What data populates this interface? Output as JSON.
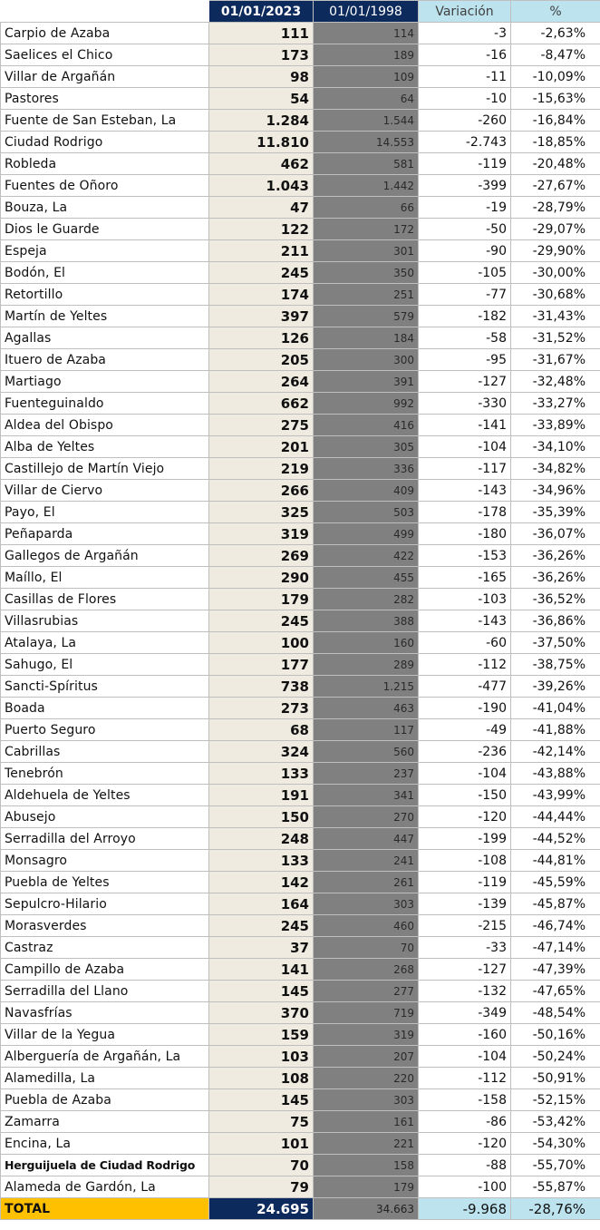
{
  "headers": {
    "name": "",
    "pop_2023": "01/01/2023",
    "pop_1998": "01/01/1998",
    "variation": "Variación",
    "percent": "%"
  },
  "rows": [
    {
      "name": "Carpio de Azaba",
      "pop_2023": "111",
      "pop_1998": "114",
      "variation": "-3",
      "percent": "-2,63%"
    },
    {
      "name": "Saelices el Chico",
      "pop_2023": "173",
      "pop_1998": "189",
      "variation": "-16",
      "percent": "-8,47%"
    },
    {
      "name": "Villar de Argañán",
      "pop_2023": "98",
      "pop_1998": "109",
      "variation": "-11",
      "percent": "-10,09%"
    },
    {
      "name": "Pastores",
      "pop_2023": "54",
      "pop_1998": "64",
      "variation": "-10",
      "percent": "-15,63%"
    },
    {
      "name": "Fuente de San Esteban, La",
      "pop_2023": "1.284",
      "pop_1998": "1.544",
      "variation": "-260",
      "percent": "-16,84%"
    },
    {
      "name": "Ciudad Rodrigo",
      "pop_2023": "11.810",
      "pop_1998": "14.553",
      "variation": "-2.743",
      "percent": "-18,85%"
    },
    {
      "name": "Robleda",
      "pop_2023": "462",
      "pop_1998": "581",
      "variation": "-119",
      "percent": "-20,48%"
    },
    {
      "name": "Fuentes de Oñoro",
      "pop_2023": "1.043",
      "pop_1998": "1.442",
      "variation": "-399",
      "percent": "-27,67%"
    },
    {
      "name": "Bouza, La",
      "pop_2023": "47",
      "pop_1998": "66",
      "variation": "-19",
      "percent": "-28,79%"
    },
    {
      "name": "Dios le Guarde",
      "pop_2023": "122",
      "pop_1998": "172",
      "variation": "-50",
      "percent": "-29,07%"
    },
    {
      "name": "Espeja",
      "pop_2023": "211",
      "pop_1998": "301",
      "variation": "-90",
      "percent": "-29,90%"
    },
    {
      "name": "Bodón, El",
      "pop_2023": "245",
      "pop_1998": "350",
      "variation": "-105",
      "percent": "-30,00%"
    },
    {
      "name": "Retortillo",
      "pop_2023": "174",
      "pop_1998": "251",
      "variation": "-77",
      "percent": "-30,68%"
    },
    {
      "name": "Martín de Yeltes",
      "pop_2023": "397",
      "pop_1998": "579",
      "variation": "-182",
      "percent": "-31,43%"
    },
    {
      "name": "Agallas",
      "pop_2023": "126",
      "pop_1998": "184",
      "variation": "-58",
      "percent": "-31,52%"
    },
    {
      "name": "Ituero de Azaba",
      "pop_2023": "205",
      "pop_1998": "300",
      "variation": "-95",
      "percent": "-31,67%"
    },
    {
      "name": "Martiago",
      "pop_2023": "264",
      "pop_1998": "391",
      "variation": "-127",
      "percent": "-32,48%"
    },
    {
      "name": "Fuenteguinaldo",
      "pop_2023": "662",
      "pop_1998": "992",
      "variation": "-330",
      "percent": "-33,27%"
    },
    {
      "name": "Aldea del Obispo",
      "pop_2023": "275",
      "pop_1998": "416",
      "variation": "-141",
      "percent": "-33,89%"
    },
    {
      "name": "Alba de Yeltes",
      "pop_2023": "201",
      "pop_1998": "305",
      "variation": "-104",
      "percent": "-34,10%"
    },
    {
      "name": "Castillejo de Martín Viejo",
      "pop_2023": "219",
      "pop_1998": "336",
      "variation": "-117",
      "percent": "-34,82%"
    },
    {
      "name": "Villar de Ciervo",
      "pop_2023": "266",
      "pop_1998": "409",
      "variation": "-143",
      "percent": "-34,96%"
    },
    {
      "name": "Payo, El",
      "pop_2023": "325",
      "pop_1998": "503",
      "variation": "-178",
      "percent": "-35,39%"
    },
    {
      "name": "Peñaparda",
      "pop_2023": "319",
      "pop_1998": "499",
      "variation": "-180",
      "percent": "-36,07%"
    },
    {
      "name": "Gallegos de Argañán",
      "pop_2023": "269",
      "pop_1998": "422",
      "variation": "-153",
      "percent": "-36,26%"
    },
    {
      "name": "Maíllo, El",
      "pop_2023": "290",
      "pop_1998": "455",
      "variation": "-165",
      "percent": "-36,26%"
    },
    {
      "name": "Casillas de Flores",
      "pop_2023": "179",
      "pop_1998": "282",
      "variation": "-103",
      "percent": "-36,52%"
    },
    {
      "name": "Villasrubias",
      "pop_2023": "245",
      "pop_1998": "388",
      "variation": "-143",
      "percent": "-36,86%"
    },
    {
      "name": "Atalaya, La",
      "pop_2023": "100",
      "pop_1998": "160",
      "variation": "-60",
      "percent": "-37,50%"
    },
    {
      "name": "Sahugo, El",
      "pop_2023": "177",
      "pop_1998": "289",
      "variation": "-112",
      "percent": "-38,75%"
    },
    {
      "name": "Sancti-Spíritus",
      "pop_2023": "738",
      "pop_1998": "1.215",
      "variation": "-477",
      "percent": "-39,26%"
    },
    {
      "name": "Boada",
      "pop_2023": "273",
      "pop_1998": "463",
      "variation": "-190",
      "percent": "-41,04%"
    },
    {
      "name": "Puerto Seguro",
      "pop_2023": "68",
      "pop_1998": "117",
      "variation": "-49",
      "percent": "-41,88%"
    },
    {
      "name": "Cabrillas",
      "pop_2023": "324",
      "pop_1998": "560",
      "variation": "-236",
      "percent": "-42,14%"
    },
    {
      "name": "Tenebrón",
      "pop_2023": "133",
      "pop_1998": "237",
      "variation": "-104",
      "percent": "-43,88%"
    },
    {
      "name": "Aldehuela de Yeltes",
      "pop_2023": "191",
      "pop_1998": "341",
      "variation": "-150",
      "percent": "-43,99%"
    },
    {
      "name": "Abusejo",
      "pop_2023": "150",
      "pop_1998": "270",
      "variation": "-120",
      "percent": "-44,44%"
    },
    {
      "name": "Serradilla del Arroyo",
      "pop_2023": "248",
      "pop_1998": "447",
      "variation": "-199",
      "percent": "-44,52%"
    },
    {
      "name": "Monsagro",
      "pop_2023": "133",
      "pop_1998": "241",
      "variation": "-108",
      "percent": "-44,81%"
    },
    {
      "name": "Puebla de Yeltes",
      "pop_2023": "142",
      "pop_1998": "261",
      "variation": "-119",
      "percent": "-45,59%"
    },
    {
      "name": "Sepulcro-Hilario",
      "pop_2023": "164",
      "pop_1998": "303",
      "variation": "-139",
      "percent": "-45,87%"
    },
    {
      "name": "Morasverdes",
      "pop_2023": "245",
      "pop_1998": "460",
      "variation": "-215",
      "percent": "-46,74%"
    },
    {
      "name": "Castraz",
      "pop_2023": "37",
      "pop_1998": "70",
      "variation": "-33",
      "percent": "-47,14%"
    },
    {
      "name": "Campillo de Azaba",
      "pop_2023": "141",
      "pop_1998": "268",
      "variation": "-127",
      "percent": "-47,39%"
    },
    {
      "name": "Serradilla del Llano",
      "pop_2023": "145",
      "pop_1998": "277",
      "variation": "-132",
      "percent": "-47,65%"
    },
    {
      "name": "Navasfrías",
      "pop_2023": "370",
      "pop_1998": "719",
      "variation": "-349",
      "percent": "-48,54%"
    },
    {
      "name": "Villar de la Yegua",
      "pop_2023": "159",
      "pop_1998": "319",
      "variation": "-160",
      "percent": "-50,16%"
    },
    {
      "name": "Alberguería de Argañán, La",
      "pop_2023": "103",
      "pop_1998": "207",
      "variation": "-104",
      "percent": "-50,24%"
    },
    {
      "name": "Alamedilla, La",
      "pop_2023": "108",
      "pop_1998": "220",
      "variation": "-112",
      "percent": "-50,91%"
    },
    {
      "name": "Puebla de Azaba",
      "pop_2023": "145",
      "pop_1998": "303",
      "variation": "-158",
      "percent": "-52,15%"
    },
    {
      "name": "Zamarra",
      "pop_2023": "75",
      "pop_1998": "161",
      "variation": "-86",
      "percent": "-53,42%"
    },
    {
      "name": "Encina, La",
      "pop_2023": "101",
      "pop_1998": "221",
      "variation": "-120",
      "percent": "-54,30%"
    },
    {
      "name": "Herguijuela de Ciudad Rodrigo",
      "pop_2023": "70",
      "pop_1998": "158",
      "variation": "-88",
      "percent": "-55,70%"
    },
    {
      "name": "Alameda de Gardón, La",
      "pop_2023": "79",
      "pop_1998": "179",
      "variation": "-100",
      "percent": "-55,87%"
    }
  ],
  "total": {
    "name": "TOTAL",
    "pop_2023": "24.695",
    "pop_1998": "34.663",
    "variation": "-9.968",
    "percent": "-28,76%"
  }
}
